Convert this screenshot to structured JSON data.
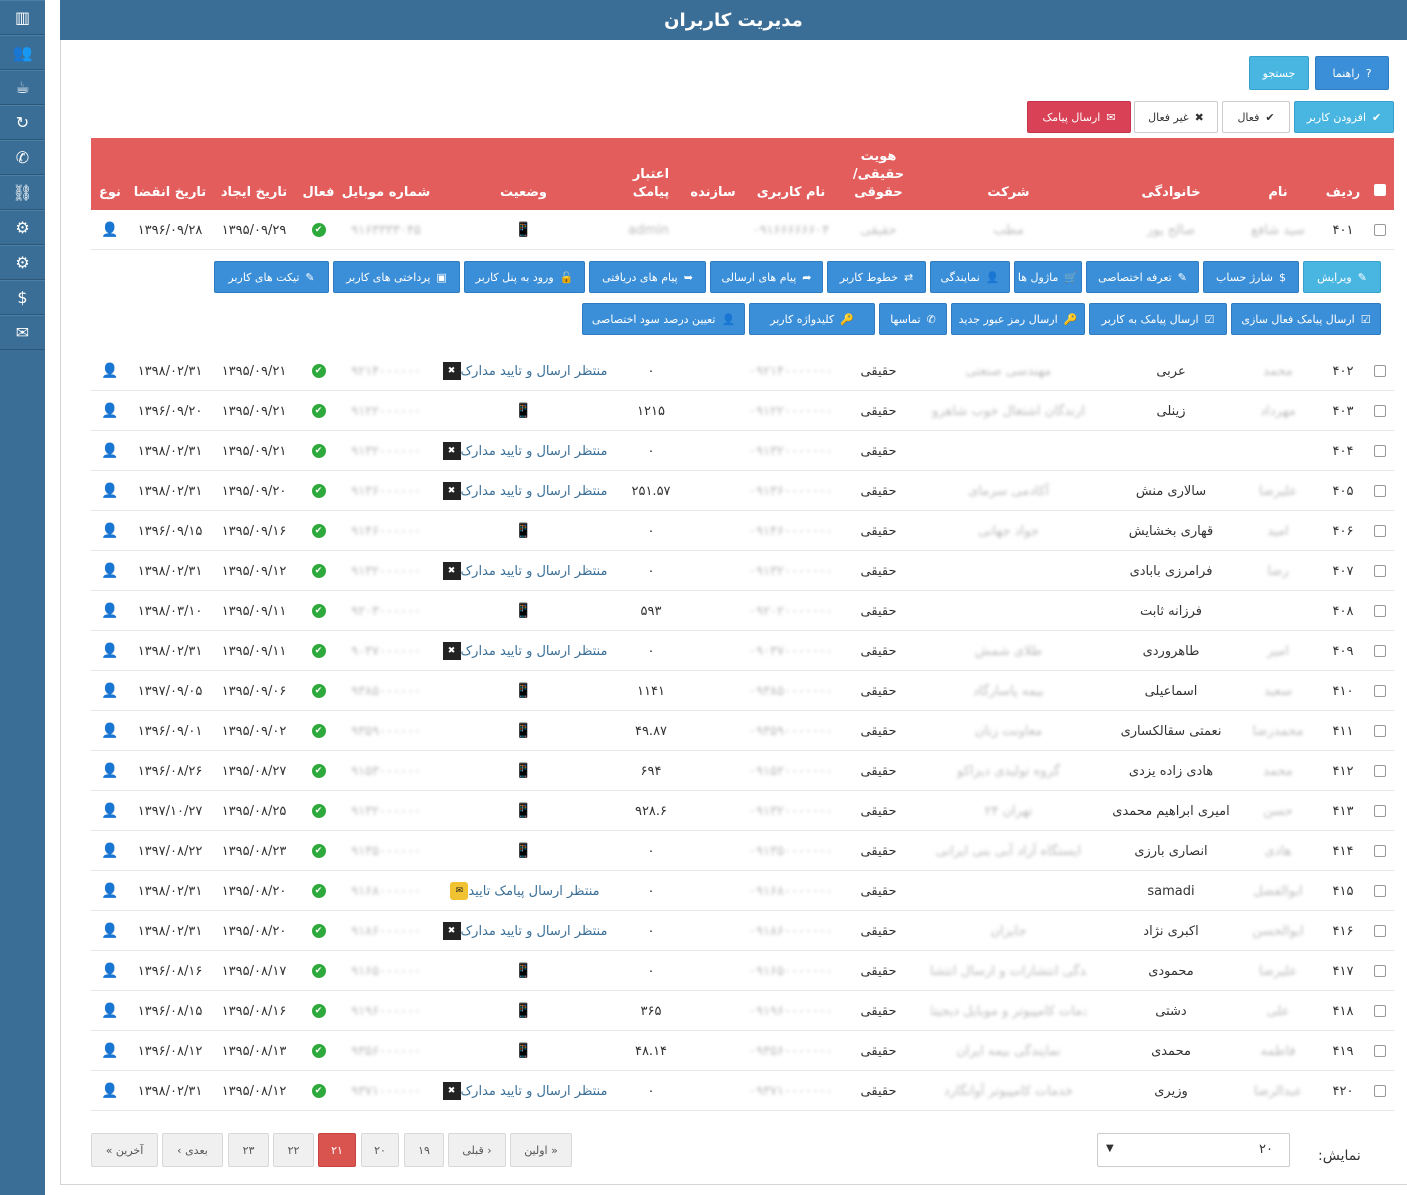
{
  "header": {
    "title": "مدیریت کاربران"
  },
  "sidebar": {
    "items": [
      {
        "icon": "chart-icon",
        "glyph": "▥"
      },
      {
        "icon": "users-icon",
        "glyph": "👥"
      },
      {
        "icon": "coffee-icon",
        "glyph": "☕"
      },
      {
        "icon": "refresh-icon",
        "glyph": "↻"
      },
      {
        "icon": "phone-icon",
        "glyph": "✆"
      },
      {
        "icon": "link-icon",
        "glyph": "⛓"
      },
      {
        "icon": "cogs-icon",
        "glyph": "⚙"
      },
      {
        "icon": "gear-icon",
        "glyph": "⚙"
      },
      {
        "icon": "dollar-icon",
        "glyph": "$"
      },
      {
        "icon": "envelope-icon",
        "glyph": "✉"
      }
    ]
  },
  "toolbar": {
    "help": "راهنما",
    "search": "جستجو",
    "add_user": "افزودن کاربر",
    "active": "فعال",
    "inactive": "غیر فعال",
    "send_sms": "ارسال پیامک"
  },
  "columns": {
    "row": "ردیف",
    "name": "نام",
    "family": "خانوادگی",
    "company": "شرکت",
    "identity_l1": "هویت",
    "identity_l2": "حقیقی/",
    "identity_l3": "حقوقی",
    "username": "نام کاربری",
    "creator": "سازنده",
    "credit_l1": "اعتبار",
    "credit_l2": "پیامک",
    "status": "وضعیت",
    "mobile": "شماره موبایل",
    "active": "فعال",
    "created": "تاریخ ایجاد",
    "expires": "تاریخ انقضا",
    "type": "نوع"
  },
  "first_row": {
    "row": "۴۰۱",
    "name": "سید شافع",
    "family": "صالح پور",
    "company": "مطب",
    "identity": "حقیقی",
    "username": "۰۹۱۶۶۶۶۶۶۰۴",
    "creator": "admin",
    "mobile": "۹۱۶۳۳۳۳۰۴۵",
    "created": "۱۳۹۵/۰۹/۲۹",
    "expires": "۱۳۹۶/۰۹/۲۸"
  },
  "actions_row1": [
    {
      "label": "ویرایش",
      "icon": "✎"
    },
    {
      "label": "شارژ حساب",
      "icon": "$"
    },
    {
      "label": "تعرفه اختصاصی",
      "icon": "✎"
    },
    {
      "label": "ماژول ها",
      "icon": "🛒"
    },
    {
      "label": "نمایندگی",
      "icon": "👤"
    },
    {
      "label": "خطوط کاربر",
      "icon": "⇄"
    },
    {
      "label": "پیام های ارسالی",
      "icon": "➦"
    },
    {
      "label": "پیام های دریافتی",
      "icon": "➥"
    },
    {
      "label": "ورود به پنل کاربر",
      "icon": "🔓"
    },
    {
      "label": "پرداختی های کاربر",
      "icon": "▣"
    },
    {
      "label": "تیکت های کاربر",
      "icon": "✎"
    }
  ],
  "actions_row2": [
    {
      "label": "ارسال پیامک فعال سازی",
      "icon": "☑"
    },
    {
      "label": "ارسال پیامک به کاربر",
      "icon": "☑"
    },
    {
      "label": "ارسال رمز عبور جدید",
      "icon": "🔑"
    },
    {
      "label": "تماسها",
      "icon": "✆"
    },
    {
      "label": "کلیدواژه کاربر",
      "icon": "🔑"
    },
    {
      "label": "تعیین درصد سود اختصاصی",
      "icon": "👤"
    }
  ],
  "rows": [
    {
      "row": "۴۰۲",
      "name": "محمد",
      "family": "عربی",
      "company": "مهندسی صنعتی",
      "identity": "حقیقی",
      "username": "۰۹۲۱۴۰۰۰۰۰۰۰",
      "credit": "۰",
      "status": "منتظر ارسال و تایید مدارک",
      "mobile": "۹۲۱۴۰۰۰۰۰۰",
      "created": "۱۳۹۵/۰۹/۲۱",
      "expires": "۱۳۹۸/۰۲/۳۱"
    },
    {
      "row": "۴۰۳",
      "name": "مهرداد",
      "family": "زینلی",
      "company": "دارندگان اشتغال خوب شاهرود",
      "identity": "حقیقی",
      "username": "۰۹۱۲۲۰۰۰۰۰۰۰",
      "credit": "۱۲۱۵",
      "status": "",
      "mobile": "۹۱۲۲۰۰۰۰۰۰",
      "created": "۱۳۹۵/۰۹/۲۱",
      "expires": "۱۳۹۶/۰۹/۲۰"
    },
    {
      "row": "۴۰۴",
      "name": "",
      "family": "",
      "company": "",
      "identity": "حقیقی",
      "username": "۰۹۱۳۲۰۰۰۰۰۰۰",
      "credit": "۰",
      "status": "منتظر ارسال و تایید مدارک",
      "mobile": "۹۱۳۲۰۰۰۰۰۰",
      "created": "۱۳۹۵/۰۹/۲۱",
      "expires": "۱۳۹۸/۰۲/۳۱"
    },
    {
      "row": "۴۰۵",
      "name": "علیرضا",
      "family": "سالاری منش",
      "company": "آکادمی سرمای",
      "identity": "حقیقی",
      "username": "۰۹۱۳۶۰۰۰۰۰۰۰",
      "credit": "۲۵۱.۵۷",
      "status": "منتظر ارسال و تایید مدارک",
      "mobile": "۹۱۳۶۰۰۰۰۰۰",
      "created": "۱۳۹۵/۰۹/۲۰",
      "expires": "۱۳۹۸/۰۲/۳۱"
    },
    {
      "row": "۴۰۶",
      "name": "امید",
      "family": "قهاری بخشایش",
      "company": "جواد جهانی",
      "identity": "حقیقی",
      "username": "۰۹۱۴۶۰۰۰۰۰۰۰",
      "credit": "۰",
      "status": "",
      "mobile": "۹۱۴۶۰۰۰۰۰۰",
      "created": "۱۳۹۵/۰۹/۱۶",
      "expires": "۱۳۹۶/۰۹/۱۵"
    },
    {
      "row": "۴۰۷",
      "name": "رضا",
      "family": "فرامرزی بابادی",
      "company": "",
      "identity": "حقیقی",
      "username": "۰۹۱۳۲۰۰۰۰۰۰۰",
      "credit": "۰",
      "status": "منتظر ارسال و تایید مدارک",
      "mobile": "۹۱۳۲۰۰۰۰۰۰",
      "created": "۱۳۹۵/۰۹/۱۲",
      "expires": "۱۳۹۸/۰۲/۳۱"
    },
    {
      "row": "۴۰۸",
      "name": "",
      "family": "فرزانه ثابت",
      "company": "",
      "identity": "حقیقی",
      "username": "۰۹۲۰۲۰۰۰۰۰۰۰",
      "credit": "۵۹۳",
      "status": "",
      "mobile": "۹۲۰۳۰۰۰۰۰۰",
      "created": "۱۳۹۵/۰۹/۱۱",
      "expires": "۱۳۹۸/۰۳/۱۰"
    },
    {
      "row": "۴۰۹",
      "name": "امیر",
      "family": "طاهروردی",
      "company": "طلای شمش",
      "identity": "حقیقی",
      "username": "۰۹۰۳۷۰۰۰۰۰۰۰",
      "credit": "۰",
      "status": "منتظر ارسال و تایید مدارک",
      "mobile": "۹۰۳۷۰۰۰۰۰۰",
      "created": "۱۳۹۵/۰۹/۱۱",
      "expires": "۱۳۹۸/۰۲/۳۱"
    },
    {
      "row": "۴۱۰",
      "name": "سعید",
      "family": "اسماعیلی",
      "company": "بیمه پاسارگاد",
      "identity": "حقیقی",
      "username": "۰۹۳۸۵۰۰۰۰۰۰۰",
      "credit": "۱۱۴۱",
      "status": "",
      "mobile": "۹۳۸۵۰۰۰۰۰۰",
      "created": "۱۳۹۵/۰۹/۰۶",
      "expires": "۱۳۹۷/۰۹/۰۵"
    },
    {
      "row": "۴۱۱",
      "name": "محمدرضا",
      "family": "نعمتی سقالکساری",
      "company": "معاونت زنان",
      "identity": "حقیقی",
      "username": "۰۹۳۵۹۰۰۰۰۰۰۰",
      "credit": "۴۹.۸۷",
      "status": "",
      "mobile": "۹۳۵۹۰۰۰۰۰۰",
      "created": "۱۳۹۵/۰۹/۰۲",
      "expires": "۱۳۹۶/۰۹/۰۱"
    },
    {
      "row": "۴۱۲",
      "name": "محمد",
      "family": "هادی زاده یزدی",
      "company": "گروه تولیدی دیزاکو",
      "identity": "حقیقی",
      "username": "۰۹۱۵۲۰۰۰۰۰۰۰",
      "credit": "۶۹۴",
      "status": "",
      "mobile": "۹۱۵۳۰۰۰۰۰۰",
      "created": "۱۳۹۵/۰۸/۲۷",
      "expires": "۱۳۹۶/۰۸/۲۶"
    },
    {
      "row": "۴۱۳",
      "name": "حسن",
      "family": "امیری ابراهیم محمدی",
      "company": "تهران ۲۴",
      "identity": "حقیقی",
      "username": "۰۹۱۳۲۰۰۰۰۰۰۰",
      "credit": "۹۲۸.۶",
      "status": "",
      "mobile": "۹۱۳۲۰۰۰۰۰۰",
      "created": "۱۳۹۵/۰۸/۲۵",
      "expires": "۱۳۹۷/۱۰/۲۷"
    },
    {
      "row": "۴۱۴",
      "name": "هادی",
      "family": "انصاری بارزی",
      "company": "ایستگاه آزاد آبی بنی ایرانی",
      "identity": "حقیقی",
      "username": "۰۹۱۳۵۰۰۰۰۰۰۰",
      "credit": "۰",
      "status": "",
      "mobile": "۹۱۳۵۰۰۰۰۰۰",
      "created": "۱۳۹۵/۰۸/۲۳",
      "expires": "۱۳۹۷/۰۸/۲۲"
    },
    {
      "row": "۴۱۵",
      "name": "ابوالفضل",
      "family": "samadi",
      "company": "",
      "identity": "حقیقی",
      "username": "۰۹۱۶۸۰۰۰۰۰۰۰",
      "credit": "۰",
      "status": "منتظر ارسال پیامک تایید",
      "mobile": "۹۱۶۸۰۰۰۰۰۰",
      "created": "۱۳۹۵/۰۸/۲۰",
      "expires": "۱۳۹۸/۰۲/۳۱"
    },
    {
      "row": "۴۱۶",
      "name": "ابوالحسن",
      "family": "اکبری نژاد",
      "company": "جایزان",
      "identity": "حقیقی",
      "username": "۰۹۱۸۶۰۰۰۰۰۰۰",
      "credit": "۰",
      "status": "منتظر ارسال و تایید مدارک",
      "mobile": "۹۱۸۶۰۰۰۰۰۰",
      "created": "۱۳۹۵/۰۸/۲۰",
      "expires": "۱۳۹۸/۰۲/۳۱"
    },
    {
      "row": "۴۱۷",
      "name": "علیرضا",
      "family": "محمودی",
      "company": "نمایندگی انتشارات و ارسال انتشارات",
      "identity": "حقیقی",
      "username": "۰۹۱۶۵۰۰۰۰۰۰۰",
      "credit": "۰",
      "status": "",
      "mobile": "۹۱۶۵۰۰۰۰۰۰",
      "created": "۱۳۹۵/۰۸/۱۷",
      "expires": "۱۳۹۶/۰۸/۱۶"
    },
    {
      "row": "۴۱۸",
      "name": "علی",
      "family": "دشتی",
      "company": "خدمات کامپیوتر و موبایل دیجیتال",
      "identity": "حقیقی",
      "username": "۰۹۱۹۶۰۰۰۰۰۰۰",
      "credit": "۳۶۵",
      "status": "",
      "mobile": "۹۱۹۶۰۰۰۰۰۰",
      "created": "۱۳۹۵/۰۸/۱۶",
      "expires": "۱۳۹۶/۰۸/۱۵"
    },
    {
      "row": "۴۱۹",
      "name": "فاطمه",
      "family": "محمدی",
      "company": "نمایندگی بیمه ایران",
      "identity": "حقیقی",
      "username": "۰۹۳۵۶۰۰۰۰۰۰۰",
      "credit": "۴۸.۱۴",
      "status": "",
      "mobile": "۹۳۵۶۰۰۰۰۰۰",
      "created": "۱۳۹۵/۰۸/۱۳",
      "expires": "۱۳۹۶/۰۸/۱۲"
    },
    {
      "row": "۴۲۰",
      "name": "عبدالرضا",
      "family": "وزیری",
      "company": "خدمات کامپیوتر آوانگارد",
      "identity": "حقیقی",
      "username": "۰۹۳۷۱۰۰۰۰۰۰۰",
      "credit": "۰",
      "status": "منتظر ارسال و تایید مدارک",
      "mobile": "۹۳۷۱۰۰۰۰۰۰",
      "created": "۱۳۹۵/۰۸/۱۲",
      "expires": "۱۳۹۸/۰۲/۳۱"
    }
  ],
  "pagination": {
    "last": "آخرین »",
    "next": "بعدی ›",
    "p23": "۲۳",
    "p22": "۲۲",
    "p21": "۲۱",
    "p20": "۲۰",
    "p19": "۱۹",
    "prev": "‹ قبلی",
    "first": "« اولین"
  },
  "page_size": {
    "label": "نمایش:",
    "value": "۲۰"
  },
  "colors": {
    "primary": "#3a6e96",
    "header_red": "#e35d5d",
    "green": "#2eaa3d",
    "danger": "#d94256",
    "info": "#48b6e0"
  }
}
